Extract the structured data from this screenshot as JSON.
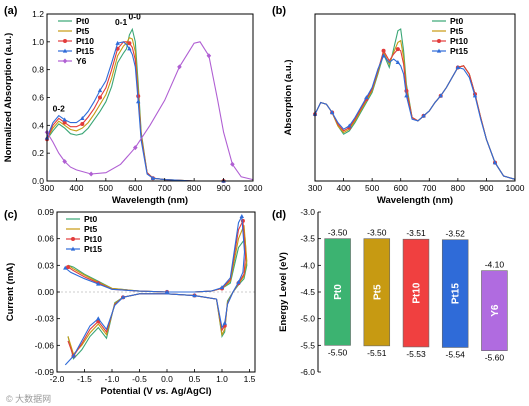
{
  "watermark": "© 大数据网",
  "chart_data": [
    {
      "panel_label": "(a)",
      "type": "line",
      "xlabel": "Wavelength (nm)",
      "ylabel": "Normalized Absorption (a.u.)",
      "xlim": [
        300,
        1000
      ],
      "ylim": [
        0,
        1.2
      ],
      "xticks": [
        300,
        400,
        500,
        600,
        700,
        800,
        900,
        1000
      ],
      "yticks": [
        0.0,
        0.2,
        0.4,
        0.6,
        0.8,
        1.0,
        1.2
      ],
      "legend_position": "top-left",
      "annotations": [
        {
          "text": "0-2",
          "x": 340,
          "y": 0.5
        },
        {
          "text": "0-1",
          "x": 552,
          "y": 1.12
        },
        {
          "text": "0-0",
          "x": 598,
          "y": 1.16
        }
      ],
      "series": [
        {
          "name": "Pt0",
          "color": "#3aa676",
          "marker": "none",
          "x": [
            300,
            320,
            340,
            360,
            380,
            400,
            420,
            440,
            460,
            480,
            500,
            520,
            540,
            560,
            570,
            580,
            590,
            600,
            610,
            620,
            640,
            660,
            700,
            800,
            900,
            1000
          ],
          "y": [
            0.3,
            0.36,
            0.41,
            0.38,
            0.34,
            0.33,
            0.34,
            0.38,
            0.44,
            0.5,
            0.57,
            0.68,
            0.85,
            0.92,
            0.95,
            1.05,
            1.09,
            1.0,
            0.7,
            0.35,
            0.06,
            0.02,
            0.01,
            0.0,
            0.0,
            0.0
          ]
        },
        {
          "name": "Pt5",
          "color": "#c79a12",
          "marker": "none",
          "x": [
            300,
            320,
            340,
            360,
            380,
            400,
            420,
            440,
            460,
            480,
            500,
            520,
            540,
            560,
            570,
            580,
            590,
            600,
            610,
            620,
            640,
            660,
            700,
            800,
            900,
            1000
          ],
          "y": [
            0.3,
            0.38,
            0.43,
            0.4,
            0.37,
            0.36,
            0.38,
            0.42,
            0.48,
            0.55,
            0.62,
            0.74,
            0.9,
            0.97,
            0.99,
            1.03,
            1.02,
            0.93,
            0.65,
            0.33,
            0.06,
            0.02,
            0.01,
            0.0,
            0.0,
            0.0
          ]
        },
        {
          "name": "Pt10",
          "color": "#e23b3b",
          "marker": "circle",
          "x": [
            300,
            320,
            340,
            360,
            380,
            400,
            420,
            440,
            460,
            480,
            500,
            520,
            540,
            560,
            570,
            580,
            590,
            600,
            610,
            620,
            640,
            660,
            700,
            800,
            900,
            1000
          ],
          "y": [
            0.3,
            0.4,
            0.45,
            0.42,
            0.39,
            0.39,
            0.41,
            0.46,
            0.52,
            0.6,
            0.67,
            0.8,
            0.95,
            1.0,
            1.0,
            0.99,
            0.96,
            0.87,
            0.61,
            0.31,
            0.06,
            0.02,
            0.01,
            0.0,
            0.0,
            0.0
          ]
        },
        {
          "name": "Pt15",
          "color": "#2f6bd8",
          "marker": "triangle",
          "x": [
            300,
            320,
            340,
            360,
            380,
            400,
            420,
            440,
            460,
            480,
            500,
            520,
            540,
            560,
            570,
            580,
            590,
            600,
            610,
            620,
            640,
            660,
            700,
            800,
            900,
            1000
          ],
          "y": [
            0.31,
            0.42,
            0.47,
            0.44,
            0.42,
            0.42,
            0.45,
            0.5,
            0.57,
            0.65,
            0.72,
            0.85,
            0.99,
            1.0,
            0.98,
            0.95,
            0.91,
            0.82,
            0.57,
            0.29,
            0.05,
            0.02,
            0.01,
            0.0,
            0.0,
            0.0
          ]
        },
        {
          "name": "Y6",
          "color": "#b05fd3",
          "marker": "diamond",
          "x": [
            300,
            320,
            340,
            360,
            380,
            400,
            450,
            500,
            550,
            600,
            650,
            700,
            750,
            800,
            820,
            850,
            880,
            900,
            930,
            960,
            1000
          ],
          "y": [
            0.35,
            0.28,
            0.2,
            0.14,
            0.1,
            0.08,
            0.05,
            0.06,
            0.12,
            0.24,
            0.4,
            0.58,
            0.82,
            0.99,
            1.0,
            0.9,
            0.58,
            0.35,
            0.12,
            0.03,
            0.01
          ]
        }
      ]
    },
    {
      "panel_label": "(b)",
      "type": "line",
      "xlabel": "Wavelength (nm)",
      "ylabel": "Absorption (a.u.)",
      "xlim": [
        300,
        1000
      ],
      "ylim": [
        0,
        1.0
      ],
      "xticks": [
        300,
        400,
        500,
        600,
        700,
        800,
        900,
        1000
      ],
      "yticks": [],
      "legend_position": "top-right",
      "series": [
        {
          "name": "Pt0",
          "color": "#3aa676",
          "marker": "none",
          "x": [
            300,
            320,
            340,
            360,
            380,
            400,
            420,
            440,
            460,
            480,
            500,
            520,
            540,
            560,
            575,
            590,
            600,
            610,
            620,
            640,
            660,
            680,
            700,
            720,
            740,
            760,
            780,
            800,
            820,
            840,
            860,
            880,
            900,
            930,
            960,
            1000
          ],
          "y": [
            0.4,
            0.47,
            0.46,
            0.41,
            0.33,
            0.28,
            0.3,
            0.35,
            0.41,
            0.47,
            0.53,
            0.64,
            0.76,
            0.68,
            0.79,
            0.9,
            0.91,
            0.78,
            0.58,
            0.38,
            0.36,
            0.39,
            0.42,
            0.47,
            0.51,
            0.56,
            0.62,
            0.68,
            0.69,
            0.64,
            0.52,
            0.38,
            0.25,
            0.11,
            0.03,
            0.01
          ]
        },
        {
          "name": "Pt5",
          "color": "#c79a12",
          "marker": "none",
          "x": [
            300,
            320,
            340,
            360,
            380,
            400,
            420,
            440,
            460,
            480,
            500,
            520,
            540,
            560,
            575,
            590,
            600,
            610,
            620,
            640,
            660,
            680,
            700,
            720,
            740,
            760,
            780,
            800,
            820,
            840,
            860,
            880,
            900,
            930,
            960,
            1000
          ],
          "y": [
            0.4,
            0.47,
            0.46,
            0.41,
            0.33,
            0.29,
            0.31,
            0.36,
            0.42,
            0.48,
            0.54,
            0.65,
            0.77,
            0.7,
            0.77,
            0.83,
            0.84,
            0.74,
            0.56,
            0.38,
            0.36,
            0.39,
            0.42,
            0.47,
            0.51,
            0.56,
            0.62,
            0.68,
            0.69,
            0.64,
            0.52,
            0.38,
            0.25,
            0.11,
            0.03,
            0.01
          ]
        },
        {
          "name": "Pt10",
          "color": "#e23b3b",
          "marker": "circle",
          "x": [
            300,
            320,
            340,
            360,
            380,
            400,
            420,
            440,
            460,
            480,
            500,
            520,
            540,
            560,
            575,
            590,
            600,
            610,
            620,
            640,
            660,
            680,
            700,
            720,
            740,
            760,
            780,
            800,
            820,
            840,
            860,
            880,
            900,
            930,
            960,
            1000
          ],
          "y": [
            0.4,
            0.47,
            0.46,
            0.41,
            0.34,
            0.3,
            0.32,
            0.37,
            0.43,
            0.49,
            0.55,
            0.66,
            0.78,
            0.72,
            0.76,
            0.79,
            0.78,
            0.7,
            0.54,
            0.38,
            0.36,
            0.39,
            0.42,
            0.47,
            0.51,
            0.56,
            0.62,
            0.68,
            0.69,
            0.64,
            0.52,
            0.38,
            0.25,
            0.11,
            0.03,
            0.01
          ]
        },
        {
          "name": "Pt15",
          "color": "#2f6bd8",
          "marker": "triangle",
          "x": [
            300,
            320,
            340,
            360,
            380,
            400,
            420,
            440,
            460,
            480,
            500,
            520,
            540,
            560,
            575,
            590,
            600,
            610,
            620,
            640,
            660,
            680,
            700,
            720,
            740,
            760,
            780,
            800,
            820,
            840,
            860,
            880,
            900,
            930,
            960,
            1000
          ],
          "y": [
            0.4,
            0.47,
            0.46,
            0.41,
            0.35,
            0.31,
            0.33,
            0.38,
            0.44,
            0.5,
            0.56,
            0.67,
            0.75,
            0.71,
            0.73,
            0.71,
            0.69,
            0.64,
            0.51,
            0.37,
            0.36,
            0.39,
            0.42,
            0.47,
            0.51,
            0.56,
            0.62,
            0.68,
            0.67,
            0.62,
            0.51,
            0.37,
            0.25,
            0.11,
            0.03,
            0.01
          ]
        }
      ]
    },
    {
      "panel_label": "(c)",
      "type": "line",
      "xlabel": "Potential (V vs. Ag/AgCl)",
      "ylabel": "Current (mA)",
      "xlim": [
        -2.0,
        1.6
      ],
      "ylim": [
        -0.09,
        0.09
      ],
      "xticks": [
        -2.0,
        -1.5,
        -1.0,
        -0.5,
        0.0,
        0.5,
        1.0,
        1.5
      ],
      "yticks": [
        -0.09,
        -0.06,
        -0.03,
        0.0,
        0.03,
        0.06,
        0.09
      ],
      "legend_position": "top-left",
      "series": [
        {
          "name": "Pt0",
          "color": "#3aa676",
          "marker": "none",
          "x": [
            -1.8,
            -1.7,
            -1.5,
            -1.25,
            -1.0,
            -0.5,
            0.0,
            0.5,
            0.8,
            1.0,
            1.15,
            1.3,
            1.42,
            1.45,
            1.4,
            1.3,
            1.2,
            1.1,
            1.05,
            1.0,
            0.9,
            0.5,
            0.0,
            -0.5,
            -0.8,
            -0.95,
            -1.1,
            -1.25,
            -1.4,
            -1.55,
            -1.7,
            -1.8
          ],
          "y": [
            0.03,
            0.028,
            0.02,
            0.012,
            0.004,
            0.001,
            0.0,
            0.0,
            0.001,
            0.004,
            0.01,
            0.05,
            0.06,
            0.03,
            0.015,
            0.008,
            0.0,
            -0.01,
            -0.045,
            -0.05,
            -0.008,
            -0.004,
            -0.002,
            -0.002,
            -0.006,
            -0.012,
            -0.052,
            -0.04,
            -0.05,
            -0.065,
            -0.075,
            -0.05
          ]
        },
        {
          "name": "Pt5",
          "color": "#c79a12",
          "marker": "none",
          "x": [
            -1.8,
            -1.7,
            -1.5,
            -1.25,
            -1.0,
            -0.5,
            0.0,
            0.5,
            0.8,
            1.0,
            1.15,
            1.3,
            1.4,
            1.45,
            1.4,
            1.3,
            1.2,
            1.1,
            1.05,
            1.0,
            0.9,
            0.5,
            0.0,
            -0.5,
            -0.8,
            -0.95,
            -1.1,
            -1.25,
            -1.4,
            -1.55,
            -1.7,
            -1.8
          ],
          "y": [
            0.03,
            0.026,
            0.019,
            0.011,
            0.004,
            0.001,
            0.0,
            0.0,
            0.001,
            0.004,
            0.012,
            0.06,
            0.075,
            0.035,
            0.018,
            0.009,
            0.0,
            -0.012,
            -0.042,
            -0.048,
            -0.008,
            -0.004,
            -0.002,
            -0.002,
            -0.006,
            -0.013,
            -0.048,
            -0.036,
            -0.046,
            -0.06,
            -0.07,
            -0.05
          ]
        },
        {
          "name": "Pt10",
          "color": "#e23b3b",
          "marker": "circle",
          "x": [
            -1.8,
            -1.7,
            -1.5,
            -1.25,
            -1.0,
            -0.5,
            0.0,
            0.5,
            0.8,
            1.0,
            1.15,
            1.3,
            1.38,
            1.43,
            1.4,
            1.3,
            1.2,
            1.1,
            1.05,
            1.0,
            0.9,
            0.5,
            0.0,
            -0.5,
            -0.8,
            -0.95,
            -1.1,
            -1.25,
            -1.4,
            -1.55,
            -1.7,
            -1.8
          ],
          "y": [
            0.028,
            0.024,
            0.017,
            0.01,
            0.003,
            0.001,
            0.0,
            0.0,
            0.001,
            0.004,
            0.014,
            0.07,
            0.08,
            0.04,
            0.02,
            0.01,
            0.0,
            -0.013,
            -0.038,
            -0.043,
            -0.008,
            -0.004,
            -0.002,
            -0.002,
            -0.006,
            -0.014,
            -0.045,
            -0.033,
            -0.042,
            -0.058,
            -0.072,
            -0.055
          ]
        },
        {
          "name": "Pt15",
          "color": "#2f6bd8",
          "marker": "triangle",
          "x": [
            -1.85,
            -1.75,
            -1.5,
            -1.25,
            -1.0,
            -0.5,
            0.0,
            0.5,
            0.8,
            1.0,
            1.15,
            1.3,
            1.36,
            1.41,
            1.38,
            1.3,
            1.2,
            1.1,
            1.05,
            1.0,
            0.9,
            0.5,
            0.0,
            -0.5,
            -0.8,
            -0.95,
            -1.1,
            -1.25,
            -1.4,
            -1.55,
            -1.7,
            -1.85
          ],
          "y": [
            0.027,
            0.022,
            0.015,
            0.009,
            0.003,
            0.001,
            0.0,
            0.0,
            0.001,
            0.005,
            0.016,
            0.078,
            0.085,
            0.045,
            0.022,
            0.011,
            0.0,
            -0.014,
            -0.035,
            -0.04,
            -0.008,
            -0.004,
            -0.002,
            -0.002,
            -0.006,
            -0.015,
            -0.042,
            -0.03,
            -0.038,
            -0.055,
            -0.072,
            -0.082
          ]
        }
      ]
    },
    {
      "panel_label": "(d)",
      "type": "bar",
      "ylabel": "Energy Level (eV)",
      "ylim": [
        -6.0,
        -3.0
      ],
      "yticks": [
        -3.0,
        -3.5,
        -4.0,
        -4.5,
        -5.0,
        -5.5,
        -6.0
      ],
      "categories": [
        "Pt0",
        "Pt5",
        "Pt10",
        "Pt15",
        "Y6"
      ],
      "lumo": [
        -3.5,
        -3.5,
        -3.51,
        -3.52,
        -4.1
      ],
      "homo": [
        -5.5,
        -5.51,
        -5.53,
        -5.54,
        -5.6
      ],
      "lumo_labels": [
        "-3.50",
        "-3.50",
        "-3.51",
        "-3.52",
        "-4.10"
      ],
      "homo_labels": [
        "-5.50",
        "-5.51",
        "-5.53",
        "-5.54",
        "-5.60"
      ],
      "colors": [
        "#3cb371",
        "#c79a12",
        "#f04040",
        "#2f6bd8",
        "#b06be0"
      ]
    }
  ]
}
